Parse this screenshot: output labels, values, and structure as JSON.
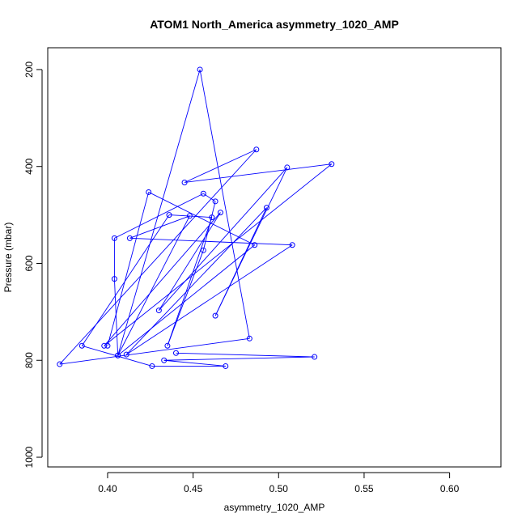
{
  "chart_data": {
    "type": "line",
    "title": "ATOM1 North_America asymmetry_1020_AMP",
    "xlabel": "asymmetry_1020_AMP",
    "ylabel": "Pressure (mbar)",
    "xlim": [
      0.365,
      0.63
    ],
    "ylim": [
      1020,
      155
    ],
    "y_reversed": true,
    "xticks": [
      0.4,
      0.45,
      0.5,
      0.55,
      0.6
    ],
    "xtick_labels": [
      "0.40",
      "0.45",
      "0.50",
      "0.55",
      "0.60"
    ],
    "yticks": [
      200,
      400,
      600,
      800,
      1000
    ],
    "ytick_labels": [
      "200",
      "400",
      "600",
      "800",
      "1000"
    ],
    "grid": false,
    "series": [
      {
        "color": "#0000ff",
        "marker": "circle-open",
        "points": [
          [
            0.4,
            770
          ],
          [
            0.424,
            453
          ],
          [
            0.486,
            562
          ],
          [
            0.406,
            790
          ],
          [
            0.454,
            200
          ],
          [
            0.483,
            755
          ],
          [
            0.372,
            808
          ],
          [
            0.487,
            365
          ],
          [
            0.445,
            433
          ],
          [
            0.531,
            395
          ],
          [
            0.398,
            770
          ],
          [
            0.466,
            495
          ],
          [
            0.43,
            697
          ],
          [
            0.505,
            402
          ],
          [
            0.463,
            708
          ],
          [
            0.493,
            485
          ],
          [
            0.411,
            788
          ],
          [
            0.508,
            562
          ],
          [
            0.413,
            548
          ],
          [
            0.448,
            502
          ],
          [
            0.406,
            790
          ],
          [
            0.404,
            632
          ],
          [
            0.404,
            548
          ],
          [
            0.456,
            456
          ],
          [
            0.463,
            472
          ],
          [
            0.456,
            573
          ],
          [
            0.435,
            770
          ],
          [
            0.461,
            505
          ],
          [
            0.436,
            500
          ],
          [
            0.385,
            770
          ],
          [
            0.426,
            812
          ],
          [
            0.469,
            812
          ],
          [
            0.433,
            800
          ],
          [
            0.521,
            793
          ],
          [
            0.44,
            785
          ]
        ]
      }
    ]
  }
}
